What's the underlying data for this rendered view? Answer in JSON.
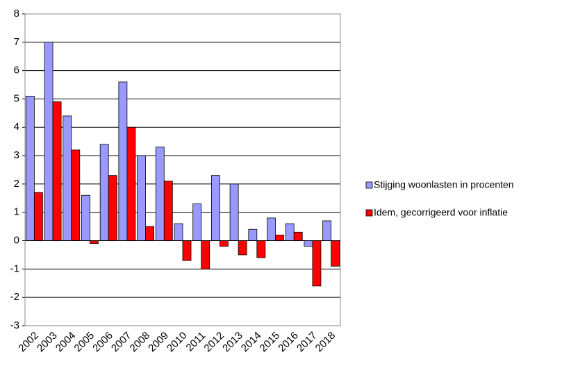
{
  "chart_data": {
    "type": "bar",
    "categories": [
      "2002",
      "2003",
      "2004",
      "2005",
      "2006",
      "2007",
      "2008",
      "2009",
      "2010",
      "2011",
      "2012",
      "2013",
      "2014",
      "2015",
      "2016",
      "2017",
      "2018"
    ],
    "series": [
      {
        "name": "Stijging woonlasten in procenten",
        "color": "#9999ff",
        "values": [
          5.1,
          7.0,
          4.4,
          1.6,
          3.4,
          5.6,
          3.0,
          3.3,
          0.6,
          1.3,
          2.3,
          2.0,
          0.4,
          0.8,
          0.6,
          -0.2,
          0.7
        ]
      },
      {
        "name": "Idem, gecorrigeerd voor inflatie",
        "color": "#ff0000",
        "values": [
          1.7,
          4.9,
          3.2,
          -0.1,
          2.3,
          4.0,
          0.5,
          2.1,
          -0.7,
          -1.0,
          -0.2,
          -0.5,
          -0.6,
          0.2,
          0.3,
          -1.6,
          -0.9
        ]
      }
    ],
    "ylim": [
      -3,
      8
    ],
    "yticks": [
      -3,
      -2,
      -1,
      0,
      1,
      2,
      3,
      4,
      5,
      6,
      7,
      8
    ],
    "grid": true
  }
}
